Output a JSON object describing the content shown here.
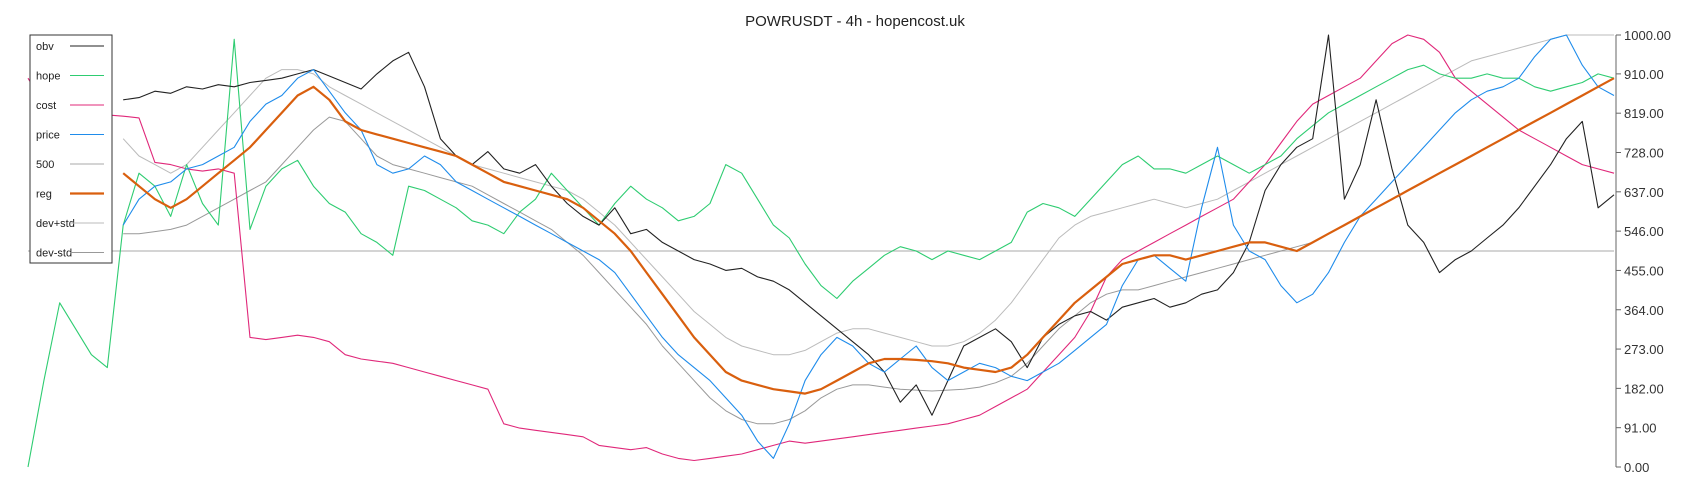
{
  "chart_data": {
    "type": "line",
    "title": "POWRUSDT - 4h - hopencost.uk",
    "xlabel": "",
    "ylabel": "",
    "ylim": [
      0,
      1000
    ],
    "y_ticks": [
      "0.00",
      "91.00",
      "182.00",
      "273.00",
      "364.00",
      "455.00",
      "546.00",
      "637.00",
      "728.00",
      "819.00",
      "910.00",
      "1000.00"
    ],
    "y_tick_values": [
      0,
      91,
      182,
      273,
      364,
      455,
      546,
      637,
      728,
      819,
      910,
      1000
    ],
    "reference_line": 500,
    "grid": false,
    "legend_position": "top-left",
    "x": [
      0,
      0.01,
      0.02,
      0.03,
      0.04,
      0.05,
      0.06,
      0.07,
      0.08,
      0.09,
      0.1,
      0.11,
      0.12,
      0.13,
      0.14,
      0.15,
      0.16,
      0.17,
      0.18,
      0.19,
      0.2,
      0.21,
      0.22,
      0.23,
      0.24,
      0.25,
      0.26,
      0.27,
      0.28,
      0.29,
      0.3,
      0.31,
      0.32,
      0.33,
      0.34,
      0.35,
      0.36,
      0.37,
      0.38,
      0.39,
      0.4,
      0.41,
      0.42,
      0.43,
      0.44,
      0.45,
      0.46,
      0.47,
      0.48,
      0.49,
      0.5,
      0.51,
      0.52,
      0.53,
      0.54,
      0.55,
      0.56,
      0.57,
      0.58,
      0.59,
      0.6,
      0.61,
      0.62,
      0.63,
      0.64,
      0.65,
      0.66,
      0.67,
      0.68,
      0.69,
      0.7,
      0.71,
      0.72,
      0.73,
      0.74,
      0.75,
      0.76,
      0.77,
      0.78,
      0.79,
      0.8,
      0.81,
      0.82,
      0.83,
      0.84,
      0.85,
      0.86,
      0.87,
      0.88,
      0.89,
      0.9,
      0.91,
      0.92,
      0.93,
      0.94,
      0.95,
      0.96,
      0.97,
      0.98,
      0.99,
      1.0
    ],
    "series": [
      {
        "name": "obv",
        "color": "#222222",
        "width": 1.1,
        "values": [
          null,
          null,
          null,
          null,
          null,
          null,
          850,
          855,
          870,
          865,
          880,
          875,
          885,
          880,
          890,
          895,
          900,
          910,
          920,
          905,
          890,
          875,
          910,
          940,
          960,
          880,
          760,
          720,
          700,
          730,
          690,
          680,
          700,
          650,
          610,
          580,
          560,
          600,
          540,
          550,
          520,
          500,
          480,
          470,
          455,
          460,
          440,
          430,
          410,
          380,
          350,
          320,
          290,
          260,
          220,
          150,
          190,
          120,
          200,
          280,
          300,
          320,
          290,
          230,
          300,
          330,
          350,
          360,
          340,
          370,
          380,
          390,
          370,
          380,
          400,
          410,
          450,
          520,
          640,
          700,
          740,
          760,
          1000,
          620,
          700,
          850,
          690,
          560,
          520,
          450,
          480,
          500,
          530,
          560,
          600,
          650,
          700,
          760,
          800,
          600,
          630
        ]
      },
      {
        "name": "hope",
        "color": "#2ecc71",
        "width": 1.1,
        "values": [
          0,
          200,
          380,
          320,
          260,
          230,
          560,
          680,
          650,
          580,
          700,
          610,
          560,
          990,
          550,
          650,
          690,
          710,
          650,
          610,
          590,
          540,
          520,
          490,
          650,
          640,
          620,
          600,
          570,
          560,
          540,
          590,
          620,
          680,
          640,
          600,
          560,
          610,
          650,
          620,
          600,
          570,
          580,
          610,
          700,
          680,
          620,
          560,
          530,
          470,
          420,
          390,
          430,
          460,
          490,
          510,
          500,
          480,
          500,
          490,
          480,
          500,
          520,
          590,
          610,
          600,
          580,
          620,
          660,
          700,
          720,
          690,
          690,
          680,
          700,
          720,
          700,
          680,
          700,
          720,
          760,
          790,
          820,
          840,
          860,
          880,
          900,
          920,
          930,
          910,
          900,
          900,
          910,
          900,
          900,
          880,
          870,
          880,
          890,
          910,
          900
        ]
      },
      {
        "name": "cost",
        "color": "#e0287a",
        "width": 1.1,
        "values": [
          900,
          840,
          820,
          815,
          810,
          815,
          812,
          808,
          705,
          700,
          690,
          685,
          690,
          680,
          300,
          295,
          300,
          305,
          300,
          290,
          260,
          250,
          245,
          240,
          230,
          220,
          210,
          200,
          190,
          180,
          100,
          90,
          85,
          80,
          75,
          70,
          50,
          45,
          40,
          45,
          30,
          20,
          15,
          20,
          25,
          30,
          40,
          50,
          60,
          55,
          60,
          65,
          70,
          75,
          80,
          85,
          90,
          95,
          100,
          110,
          120,
          140,
          160,
          180,
          220,
          260,
          300,
          360,
          440,
          480,
          500,
          520,
          540,
          560,
          580,
          600,
          620,
          660,
          700,
          750,
          800,
          840,
          860,
          880,
          900,
          940,
          980,
          1000,
          990,
          960,
          900,
          870,
          840,
          810,
          780,
          760,
          740,
          720,
          700,
          690,
          680
        ]
      },
      {
        "name": "price",
        "color": "#1f8ceb",
        "width": 1.1,
        "values": [
          null,
          null,
          null,
          null,
          null,
          null,
          560,
          620,
          650,
          660,
          690,
          700,
          720,
          740,
          800,
          840,
          860,
          900,
          920,
          870,
          820,
          780,
          700,
          680,
          690,
          720,
          700,
          660,
          640,
          620,
          600,
          580,
          560,
          540,
          520,
          500,
          480,
          450,
          400,
          350,
          300,
          260,
          230,
          200,
          160,
          120,
          60,
          20,
          100,
          200,
          260,
          300,
          280,
          240,
          220,
          250,
          280,
          230,
          200,
          220,
          240,
          230,
          210,
          200,
          220,
          240,
          270,
          300,
          330,
          420,
          480,
          490,
          460,
          430,
          600,
          740,
          560,
          500,
          480,
          420,
          380,
          400,
          450,
          520,
          580,
          620,
          660,
          700,
          740,
          780,
          820,
          850,
          870,
          880,
          900,
          950,
          990,
          1000,
          930,
          880,
          860
        ]
      },
      {
        "name": "500",
        "color": "#aaaaaa",
        "width": 1.0,
        "values": [
          null,
          null,
          null,
          null,
          null,
          null,
          null,
          null,
          null,
          null,
          null,
          null,
          null,
          null,
          null,
          null,
          null,
          null,
          null,
          null,
          null,
          null,
          null,
          null,
          null,
          null,
          null,
          null,
          null,
          null,
          null,
          null,
          null,
          null,
          null,
          null,
          null,
          null,
          null,
          null,
          null,
          null,
          null,
          null,
          null,
          null,
          null,
          null,
          null,
          null,
          null,
          null,
          null,
          null,
          null,
          null,
          null,
          null,
          null,
          null,
          null,
          null,
          null,
          null,
          null,
          null,
          null,
          null,
          null,
          null,
          null,
          null,
          null,
          null,
          null,
          null,
          null,
          null,
          null,
          null,
          null,
          null,
          null,
          null,
          null,
          null,
          null,
          null,
          null,
          null,
          null,
          null,
          null,
          null,
          null,
          null,
          null,
          null,
          null,
          null,
          null
        ]
      },
      {
        "name": "reg",
        "color": "#d95f0e",
        "width": 2.2,
        "values": [
          null,
          null,
          null,
          null,
          null,
          null,
          680,
          650,
          620,
          600,
          620,
          650,
          680,
          710,
          740,
          780,
          820,
          860,
          880,
          850,
          800,
          780,
          770,
          760,
          750,
          740,
          730,
          720,
          700,
          680,
          660,
          650,
          640,
          630,
          620,
          600,
          570,
          540,
          500,
          450,
          400,
          350,
          300,
          260,
          220,
          200,
          190,
          180,
          175,
          170,
          180,
          200,
          220,
          240,
          250,
          250,
          248,
          245,
          240,
          230,
          225,
          220,
          230,
          260,
          300,
          340,
          380,
          410,
          440,
          470,
          480,
          490,
          490,
          480,
          490,
          500,
          510,
          520,
          520,
          510,
          500,
          520,
          540,
          560,
          580,
          600,
          620,
          640,
          660,
          680,
          700,
          720,
          740,
          760,
          780,
          800,
          820,
          840,
          860,
          880,
          900
        ]
      },
      {
        "name": "dev+std",
        "color": "#bbbbbb",
        "width": 1.0,
        "values": [
          null,
          null,
          null,
          null,
          null,
          null,
          760,
          720,
          700,
          680,
          700,
          740,
          780,
          820,
          860,
          900,
          920,
          920,
          910,
          880,
          860,
          840,
          820,
          800,
          780,
          760,
          740,
          720,
          700,
          690,
          680,
          670,
          660,
          650,
          640,
          620,
          590,
          560,
          520,
          480,
          440,
          400,
          360,
          330,
          300,
          280,
          270,
          260,
          260,
          270,
          290,
          310,
          320,
          320,
          310,
          300,
          290,
          280,
          280,
          290,
          310,
          340,
          380,
          430,
          480,
          530,
          560,
          580,
          590,
          600,
          610,
          620,
          610,
          600,
          610,
          620,
          640,
          660,
          680,
          700,
          720,
          740,
          760,
          780,
          800,
          820,
          840,
          860,
          880,
          900,
          920,
          940,
          950,
          960,
          970,
          980,
          990,
          1000,
          1000,
          1000,
          1000
        ]
      },
      {
        "name": "dev-std",
        "color": "#999999",
        "width": 1.0,
        "values": [
          null,
          null,
          null,
          null,
          null,
          null,
          540,
          540,
          545,
          550,
          560,
          580,
          600,
          620,
          640,
          660,
          700,
          740,
          780,
          810,
          800,
          760,
          720,
          700,
          690,
          680,
          670,
          660,
          650,
          630,
          610,
          590,
          570,
          550,
          520,
          490,
          450,
          410,
          370,
          330,
          280,
          240,
          200,
          160,
          130,
          110,
          100,
          100,
          110,
          130,
          160,
          180,
          190,
          190,
          185,
          180,
          178,
          176,
          178,
          180,
          185,
          195,
          210,
          240,
          280,
          320,
          350,
          380,
          400,
          410,
          410,
          420,
          430,
          440,
          450,
          460,
          470,
          480,
          490,
          500,
          510,
          520,
          540,
          560,
          580,
          600,
          620,
          640,
          660,
          680,
          700,
          720,
          740,
          760,
          780,
          800,
          820,
          840,
          860,
          880,
          900
        ]
      }
    ]
  }
}
